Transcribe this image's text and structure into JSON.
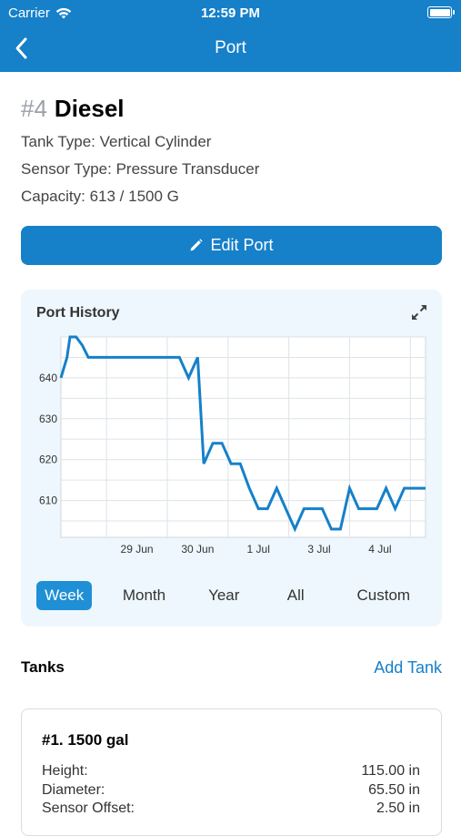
{
  "status_bar": {
    "carrier": "Carrier",
    "time": "12:59 PM"
  },
  "nav": {
    "title": "Port"
  },
  "port": {
    "number": "#4",
    "name": "Diesel",
    "tank_type": "Tank Type: Vertical Cylinder",
    "sensor_type": "Sensor Type: Pressure Transducer",
    "capacity": "Capacity: 613 / 1500 G"
  },
  "edit_button": {
    "label": "Edit Port"
  },
  "history": {
    "title": "Port History",
    "ranges": [
      "Week",
      "Month",
      "Year",
      "All",
      "Custom"
    ],
    "active_range": "Week"
  },
  "chart_data": {
    "type": "line",
    "title": "Port History",
    "xlabel": "",
    "ylabel": "",
    "x_ticks": [
      "29 Jun",
      "30 Jun",
      "1 Jul",
      "3 Jul",
      "4 Jul"
    ],
    "x_tick_days": [
      0.5,
      1.5,
      2.5,
      3.5,
      4.5
    ],
    "y_ticks": [
      610,
      620,
      630,
      640
    ],
    "xlim": [
      -0.75,
      5.25
    ],
    "ylim": [
      601,
      650
    ],
    "grid": true,
    "series": [
      {
        "color": "#1680c9",
        "x": [
          -0.75,
          -0.65,
          -0.6,
          -0.5,
          -0.4,
          -0.3,
          0.0,
          0.5,
          0.9,
          1.2,
          1.35,
          1.5,
          1.6,
          1.75,
          1.9,
          2.05,
          2.2,
          2.35,
          2.5,
          2.65,
          2.8,
          2.95,
          3.1,
          3.25,
          3.4,
          3.55,
          3.7,
          3.85,
          4.0,
          4.15,
          4.3,
          4.45,
          4.6,
          4.75,
          4.9,
          5.05,
          5.15,
          5.25
        ],
        "y": [
          640,
          645,
          650,
          650,
          648,
          645,
          645,
          645,
          645,
          645,
          640,
          645,
          619,
          624,
          624,
          619,
          619,
          613,
          608,
          608,
          613,
          608,
          603,
          608,
          608,
          608,
          603,
          603,
          613,
          608,
          608,
          608,
          613,
          608,
          613,
          613,
          613,
          613
        ]
      }
    ]
  },
  "tanks_section": {
    "label": "Tanks",
    "add_label": "Add Tank"
  },
  "tank": {
    "title": "#1. 1500 gal",
    "rows": [
      {
        "label": "Height:",
        "value": "115.00 in"
      },
      {
        "label": "Diameter:",
        "value": "65.50 in"
      },
      {
        "label": "Sensor Offset:",
        "value": "2.50 in"
      }
    ]
  },
  "colors": {
    "accent": "#1680c9",
    "chart_bg": "#eef7fd",
    "active_range": "#1f8fd6"
  }
}
